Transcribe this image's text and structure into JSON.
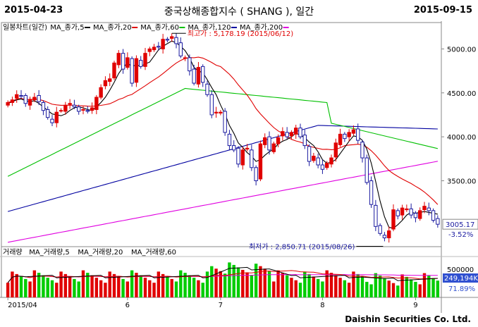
{
  "header": {
    "start_date": "2015-04-23",
    "title": "중국상해종합지수 ( SHANG ), 일간",
    "end_date": "2015-09-15"
  },
  "footer": {
    "brand": "Daishin Securities Co. Ltd."
  },
  "colors": {
    "up": "#e00000",
    "down": "#1a1aa0",
    "ma5": "#000000",
    "ma20": "#e00000",
    "ma60": "#00c000",
    "ma120": "#0000a0",
    "ma200": "#e000e0",
    "vol_up": "#e00000",
    "vol_down": "#00cc00"
  },
  "chart_data": [
    {
      "type": "candlestick",
      "legend": [
        {
          "label": "일봉차트(일간)",
          "color": "#000000"
        },
        {
          "label": "MA_종가,5",
          "color": "#000000"
        },
        {
          "label": "MA_종가,20",
          "color": "#e00000"
        },
        {
          "label": "MA_종가,60",
          "color": "#00c000"
        },
        {
          "label": "MA_종가,120",
          "color": "#0000a0"
        },
        {
          "label": "MA_종가,200",
          "color": "#e000e0"
        }
      ],
      "y_ticks": [
        "5000.00",
        "4500.00",
        "4000.00",
        "3500.00"
      ],
      "ylim": [
        2750,
        5300
      ],
      "x_ticks": [
        {
          "label": "2015/04",
          "index": 0
        },
        {
          "label": "6",
          "index": 27
        },
        {
          "label": "7",
          "index": 48
        },
        {
          "label": "8",
          "index": 71
        },
        {
          "label": "9",
          "index": 92
        }
      ],
      "closes": [
        4390,
        4420,
        4480,
        4460,
        4380,
        4420,
        4450,
        4400,
        4300,
        4220,
        4160,
        4280,
        4300,
        4360,
        4380,
        4340,
        4290,
        4310,
        4290,
        4330,
        4450,
        4560,
        4640,
        4660,
        4840,
        4950,
        4770,
        4900,
        4610,
        4890,
        4800,
        4950,
        5000,
        5020,
        5020,
        5110,
        5100,
        5140,
        5060,
        4920,
        4900,
        4750,
        4610,
        4790,
        4620,
        4480,
        4250,
        4280,
        4280,
        4050,
        3900,
        3850,
        3690,
        3850,
        3870,
        3650,
        3500,
        3920,
        3990,
        3850,
        3920,
        3990,
        4060,
        4000,
        4050,
        4100,
        4000,
        3900,
        3720,
        3780,
        3680,
        3630,
        3700,
        3760,
        3930,
        4030,
        3980,
        4050,
        4080,
        3960,
        3760,
        3480,
        3230,
        2980,
        2900,
        2850,
        2930,
        3170,
        3100,
        3190,
        3180,
        3110,
        3080,
        3160,
        3210,
        3160,
        3050,
        3005
      ],
      "ma5_points": [
        4380,
        4400,
        4420,
        4430,
        4410,
        4400,
        4410,
        4380,
        4340,
        4300,
        4260,
        4250,
        4240,
        4260,
        4300,
        4330,
        4340,
        4330,
        4310,
        4300,
        4340,
        4390,
        4450,
        4530,
        4620,
        4720,
        4790,
        4840,
        4800,
        4820,
        4800,
        4830,
        4850,
        4920,
        4990,
        5030,
        5060,
        5090,
        5070,
        5030,
        4980,
        4900,
        4790,
        4750,
        4730,
        4650,
        4560,
        4480,
        4360,
        4260,
        4130,
        4040,
        3930,
        3880,
        3820,
        3780,
        3720,
        3740,
        3790,
        3830,
        3860,
        3920,
        3950,
        3970,
        4000,
        4040,
        4020,
        3990,
        3940,
        3900,
        3830,
        3740,
        3700,
        3710,
        3740,
        3810,
        3880,
        3950,
        4010,
        4000,
        3960,
        3860,
        3700,
        3490,
        3270,
        3090,
        2970,
        2960,
        3000,
        3050,
        3110,
        3140,
        3130,
        3140,
        3150,
        3140,
        3130,
        3120
      ],
      "highest": {
        "label": "최고가 : 5,178.19 (2015/06/12)",
        "value": 5178.19,
        "index": 37
      },
      "lowest": {
        "label": "최저가 : 2,850.71 (2015/08/26)",
        "value": 2850.71,
        "index": 85
      },
      "last": {
        "price": "3005.17",
        "change": "-3.52%"
      }
    },
    {
      "type": "bar",
      "legend": [
        {
          "label": "거래량",
          "color": "#000000"
        },
        {
          "label": "MA_거래량,5",
          "color": "#000000"
        },
        {
          "label": "MA_거래량,20",
          "color": "#e00000"
        },
        {
          "label": "MA_거래량,60",
          "color": "#e000e0"
        }
      ],
      "y_ticks": [
        "500000"
      ],
      "ylim": [
        0,
        700000
      ],
      "last": {
        "volume": "249,194K",
        "ratio": "71.89%"
      }
    }
  ]
}
